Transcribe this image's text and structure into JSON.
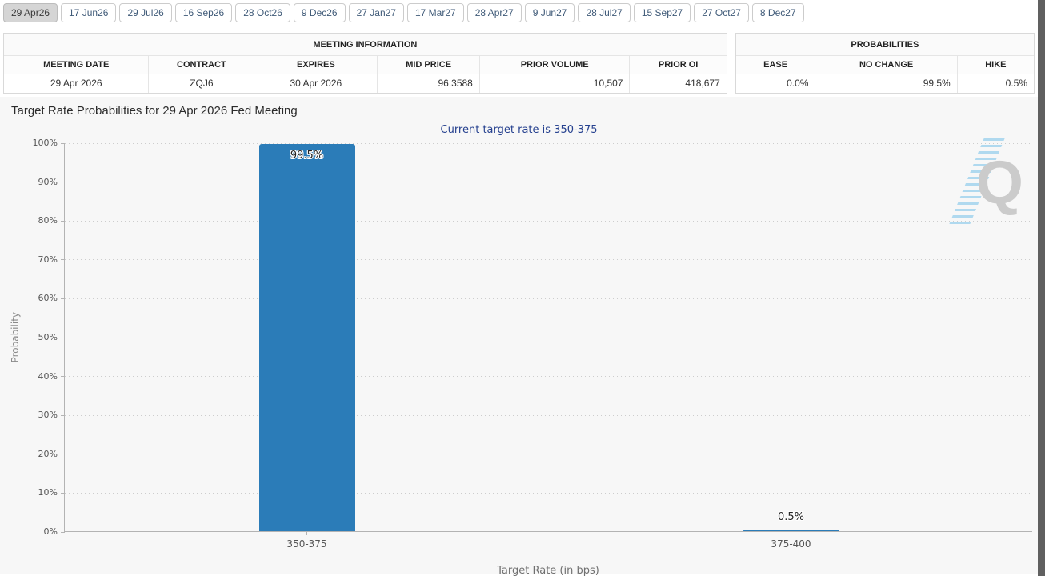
{
  "tabs": {
    "active": "29 Apr26",
    "items": [
      "29 Apr26",
      "17 Jun26",
      "29 Jul26",
      "16 Sep26",
      "28 Oct26",
      "9 Dec26",
      "27 Jan27",
      "17 Mar27",
      "28 Apr27",
      "9 Jun27",
      "28 Jul27",
      "15 Sep27",
      "27 Oct27",
      "8 Dec27"
    ]
  },
  "meeting_info": {
    "title": "MEETING INFORMATION",
    "columns": [
      {
        "label": "MEETING DATE",
        "value": "29 Apr 2026"
      },
      {
        "label": "CONTRACT",
        "value": "ZQJ6"
      },
      {
        "label": "EXPIRES",
        "value": "30 Apr 2026"
      },
      {
        "label": "MID PRICE",
        "value": "96.3588"
      },
      {
        "label": "PRIOR VOLUME",
        "value": "10,507"
      },
      {
        "label": "PRIOR OI",
        "value": "418,677"
      }
    ]
  },
  "probabilities": {
    "title": "PROBABILITIES",
    "columns": [
      {
        "label": "EASE",
        "value": "0.0%"
      },
      {
        "label": "NO CHANGE",
        "value": "99.5%"
      },
      {
        "label": "HIKE",
        "value": "0.5%"
      }
    ]
  },
  "chart": {
    "menu_icon": "hamburger-icon",
    "watermark_letter": "Q"
  },
  "chart_data": {
    "type": "bar",
    "title": "Target Rate Probabilities for 29 Apr 2026 Fed Meeting",
    "subtitle": "Current target rate is 350-375",
    "categories": [
      "350-375",
      "375-400"
    ],
    "values": [
      99.5,
      0.5
    ],
    "value_labels": [
      "99.5%",
      "0.5%"
    ],
    "xlabel": "Target Rate (in bps)",
    "ylabel": "Probability",
    "ylim": [
      0,
      100
    ],
    "ytick_step": 10,
    "ytick_suffix": "%",
    "grid": "dotted-horizontal",
    "legend": "none",
    "bar_color": "#2b7cb8"
  }
}
